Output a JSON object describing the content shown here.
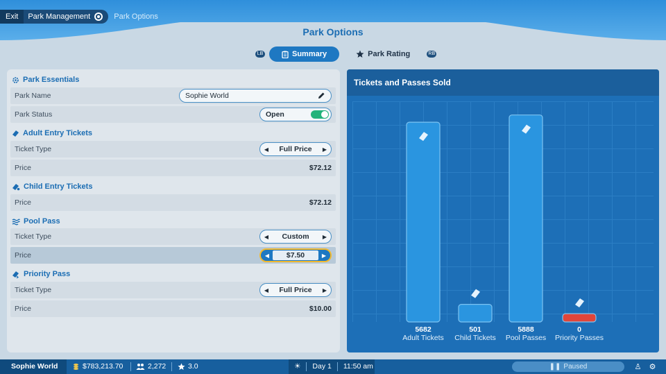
{
  "breadcrumb": {
    "exit": "Exit",
    "park_management": "Park Management",
    "current": "Park Options"
  },
  "page_title": "Park Options",
  "tabs": [
    {
      "label": "Summary",
      "icon": "clipboard-icon",
      "active": true
    },
    {
      "label": "Park Rating",
      "icon": "star-icon",
      "active": false
    }
  ],
  "sections": {
    "essentials": {
      "title": "Park Essentials",
      "park_name_label": "Park Name",
      "park_name_value": "Sophie World",
      "park_status_label": "Park Status",
      "park_status_value": "Open",
      "park_status_on": true
    },
    "adult": {
      "title": "Adult Entry Tickets",
      "ticket_type_label": "Ticket Type",
      "ticket_type_value": "Full Price",
      "price_label": "Price",
      "price_value": "$72.12"
    },
    "child": {
      "title": "Child Entry Tickets",
      "price_label": "Price",
      "price_value": "$72.12"
    },
    "pool": {
      "title": "Pool Pass",
      "ticket_type_label": "Ticket Type",
      "ticket_type_value": "Custom",
      "price_label": "Price",
      "price_value": "$7.50"
    },
    "priority": {
      "title": "Priority Pass",
      "ticket_type_label": "Ticket Type",
      "ticket_type_value": "Full Price",
      "price_label": "Price",
      "price_value": "$10.00"
    }
  },
  "chart_title": "Tickets and Passes Sold",
  "chart_data": {
    "type": "bar",
    "title": "Tickets and Passes Sold",
    "categories": [
      "Adult Tickets",
      "Child Tickets",
      "Pool Passes",
      "Priority Passes"
    ],
    "values": [
      5682,
      501,
      5888,
      0
    ],
    "value_labels": [
      "5682",
      "501",
      "5888",
      "0"
    ],
    "ylim": [
      0,
      6000
    ],
    "grid": true,
    "colors": [
      "#2a95e0",
      "#2a95e0",
      "#2a95e0",
      "#e0453a"
    ],
    "icons": [
      "ticket-icon",
      "child-ticket-icon",
      "pool-pass-icon",
      "priority-pass-icon"
    ]
  },
  "status_bar": {
    "park_name": "Sophie World",
    "money": "$783,213.70",
    "guests": "2,272",
    "rating": "3.0",
    "day": "Day 1",
    "time": "11:50 am",
    "paused": "Paused"
  }
}
